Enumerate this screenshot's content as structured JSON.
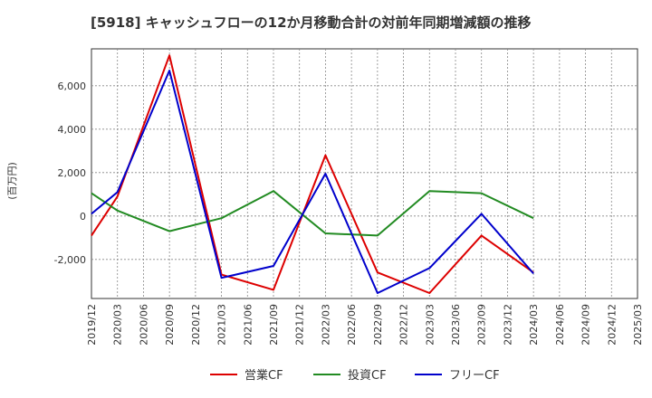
{
  "chart_data": {
    "type": "line",
    "title": "[5918]  キャッシュフローの12か月移動合計の対前年同期増減額の推移",
    "ylabel": "(百万円)",
    "xlabel": "",
    "x_ticks": [
      "2019/12",
      "2020/03",
      "2020/06",
      "2020/09",
      "2020/12",
      "2021/03",
      "2021/06",
      "2021/09",
      "2021/12",
      "2022/03",
      "2022/06",
      "2022/09",
      "2022/12",
      "2023/03",
      "2023/06",
      "2023/09",
      "2023/12",
      "2024/03",
      "2024/06",
      "2024/09",
      "2024/12",
      "2025/03"
    ],
    "y_ticks": [
      -2000,
      0,
      2000,
      4000,
      6000
    ],
    "y_tick_labels": [
      "-2,000",
      "0",
      "2,000",
      "4,000",
      "6,000"
    ],
    "ylim": [
      -3800,
      7700
    ],
    "grid": true,
    "legend_position": "bottom",
    "series": [
      {
        "name": "営業CF",
        "color": "#dd0000",
        "x": [
          "2019/12",
          "2020/03",
          "2020/09",
          "2021/03",
          "2021/09",
          "2022/03",
          "2022/09",
          "2023/03",
          "2023/09",
          "2024/03"
        ],
        "values": [
          -900,
          900,
          7400,
          -2700,
          -3400,
          2800,
          -2600,
          -3550,
          -900,
          -2600
        ]
      },
      {
        "name": "投資CF",
        "color": "#228b22",
        "x": [
          "2019/12",
          "2020/03",
          "2020/09",
          "2021/03",
          "2021/09",
          "2022/03",
          "2022/09",
          "2023/03",
          "2023/09",
          "2024/03"
        ],
        "values": [
          1050,
          250,
          -700,
          -100,
          1150,
          -800,
          -900,
          1150,
          1050,
          -100
        ]
      },
      {
        "name": "フリーCF",
        "color": "#0000cc",
        "x": [
          "2019/12",
          "2020/03",
          "2020/09",
          "2021/03",
          "2021/09",
          "2022/03",
          "2022/09",
          "2023/03",
          "2023/09",
          "2024/03"
        ],
        "values": [
          100,
          1100,
          6700,
          -2850,
          -2300,
          1950,
          -3550,
          -2400,
          100,
          -2650
        ]
      }
    ]
  }
}
